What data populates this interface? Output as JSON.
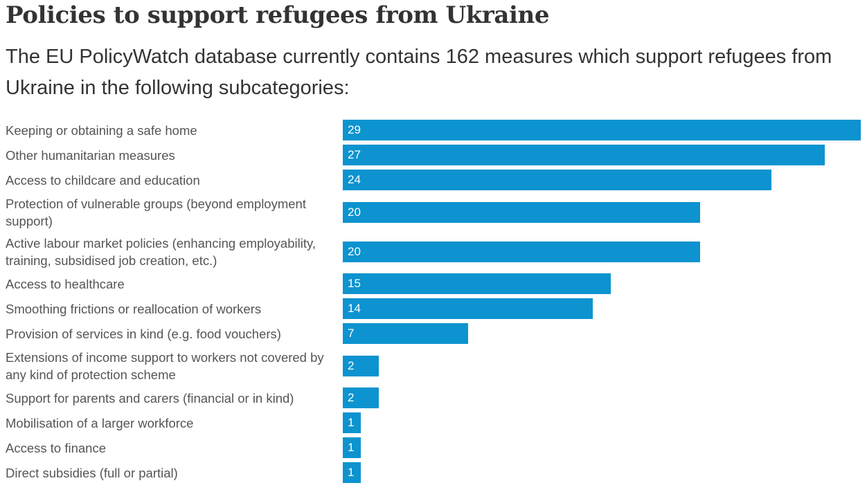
{
  "chart_data": {
    "type": "bar",
    "orientation": "horizontal",
    "title": "Policies to support refugees from Ukraine",
    "subtitle": "The EU PolicyWatch database currently contains 162 measures which support refugees from Ukraine in the following subcategories:",
    "categories": [
      "Keeping or obtaining a safe home",
      "Other humanitarian measures",
      "Access to childcare and education",
      "Protection of vulnerable groups (beyond employment support)",
      "Active labour market policies (enhancing employability, training, subsidised job creation, etc.)",
      "Access to healthcare",
      "Smoothing frictions or reallocation of workers",
      "Provision of services in kind (e.g. food vouchers)",
      "Extensions of income support to workers not covered by any kind of protection scheme",
      "Support for parents and carers (financial or in kind)",
      "Mobilisation of a larger workforce",
      "Access to finance",
      "Direct subsidies (full or partial)"
    ],
    "values": [
      29,
      27,
      24,
      20,
      20,
      15,
      14,
      7,
      2,
      2,
      1,
      1,
      1
    ],
    "xlim": [
      0,
      29
    ],
    "bar_color": "#0d93cf",
    "value_labels": true,
    "grid": false
  }
}
